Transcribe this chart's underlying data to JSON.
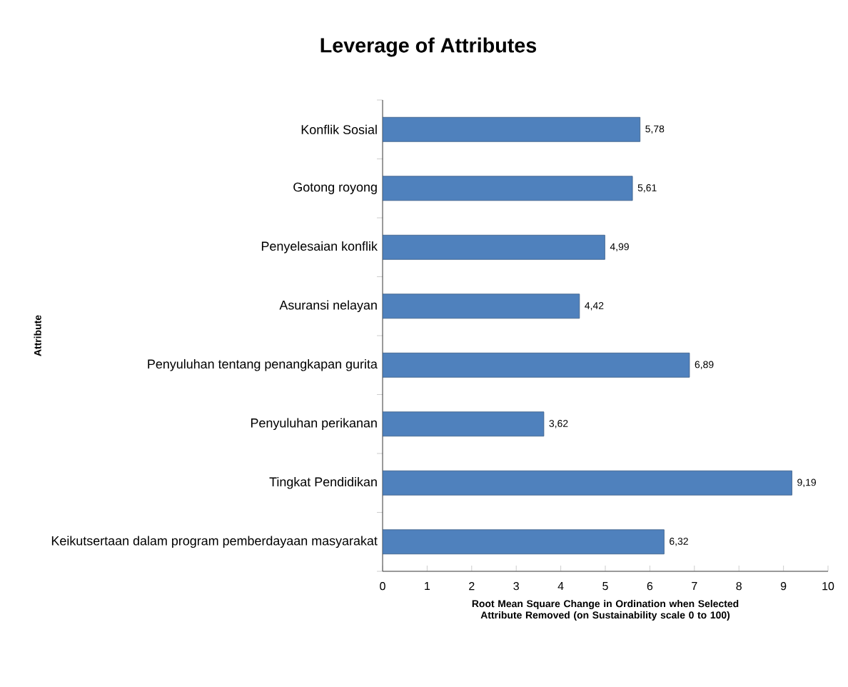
{
  "chart_data": {
    "type": "bar",
    "orientation": "horizontal",
    "title": "Leverage of Attributes",
    "xlabel": "Root Mean Square Change in Ordination when Selected Attribute Removed (on Sustainability scale 0 to 100)",
    "ylabel": "Attribute",
    "categories": [
      "Konflik Sosial",
      "Gotong royong",
      "Penyelesaian konflik",
      "Asuransi nelayan",
      "Penyuluhan tentang penangkapan gurita",
      "Penyuluhan perikanan",
      "Tingkat Pendidikan",
      "Keikutsertaan dalam program pemberdayaan masyarakat"
    ],
    "values": [
      5.78,
      5.61,
      4.99,
      4.42,
      6.89,
      3.62,
      9.19,
      6.32
    ],
    "value_labels": [
      "5,78",
      "5,61",
      "4,99",
      "4,42",
      "6,89",
      "3,62",
      "9,19",
      "6,32"
    ],
    "color": "#4f81bd",
    "xlim": [
      0,
      10
    ],
    "xticks": [
      0,
      1,
      2,
      3,
      4,
      5,
      6,
      7,
      8,
      9,
      10
    ]
  }
}
